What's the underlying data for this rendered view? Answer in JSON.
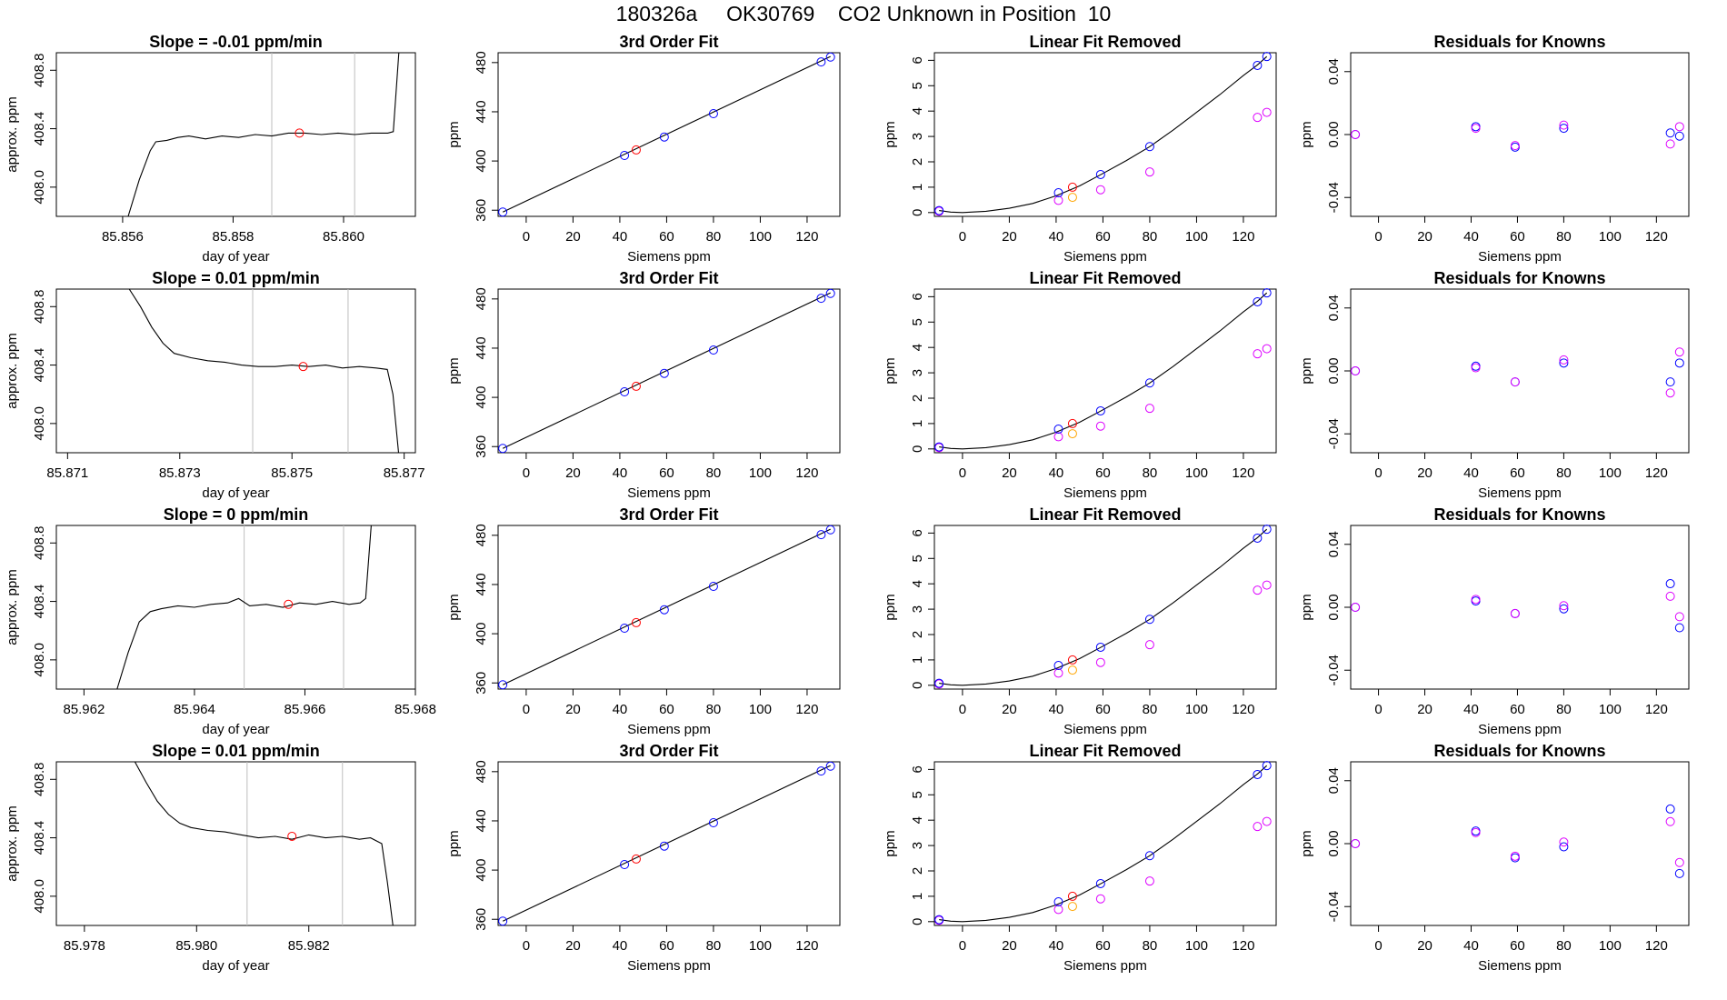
{
  "page": {
    "title": "180326a     OK30769    CO2 Unknown in Position  10"
  },
  "rows": [
    {
      "timeseries": {
        "title": "Slope =  -0.01  ppm/min",
        "xlabel": "day of year",
        "ylabel": "approx. ppm",
        "xlim": [
          85.8548,
          85.8613
        ],
        "ylim": [
          407.8,
          408.92
        ],
        "xticks": [
          "85.856",
          "85.858",
          "85.860"
        ],
        "xtickvals": [
          85.856,
          85.858,
          85.86
        ],
        "yticks": [
          "408.0",
          "408.4",
          "408.8"
        ],
        "ytickvals": [
          408.0,
          408.4,
          408.8
        ],
        "vlines": [
          85.8587,
          85.8602
        ],
        "point": {
          "x": 85.8592,
          "y": 408.37
        },
        "trace": [
          [
            85.8561,
            407.8
          ],
          [
            85.8563,
            408.05
          ],
          [
            85.8565,
            408.25
          ],
          [
            85.8566,
            408.31
          ],
          [
            85.8568,
            408.32
          ],
          [
            85.857,
            408.34
          ],
          [
            85.8572,
            408.35
          ],
          [
            85.8575,
            408.33
          ],
          [
            85.8578,
            408.35
          ],
          [
            85.8581,
            408.34
          ],
          [
            85.8584,
            408.36
          ],
          [
            85.8587,
            408.35
          ],
          [
            85.859,
            408.37
          ],
          [
            85.8593,
            408.37
          ],
          [
            85.8596,
            408.36
          ],
          [
            85.8599,
            408.37
          ],
          [
            85.8602,
            408.36
          ],
          [
            85.8605,
            408.37
          ],
          [
            85.8608,
            408.37
          ],
          [
            85.8609,
            408.38
          ],
          [
            85.861,
            408.92
          ]
        ]
      },
      "residuals": {
        "blue": [
          [
            -10,
            0.0
          ],
          [
            42,
            0.005
          ],
          [
            59,
            -0.008
          ],
          [
            80,
            0.004
          ],
          [
            126,
            0.001
          ],
          [
            130,
            -0.001
          ]
        ],
        "magenta": [
          [
            -10,
            0.0
          ],
          [
            42,
            0.004
          ],
          [
            59,
            -0.007
          ],
          [
            80,
            0.006
          ],
          [
            126,
            -0.006
          ],
          [
            130,
            0.005
          ]
        ]
      }
    },
    {
      "timeseries": {
        "title": "Slope =  0.01  ppm/min",
        "xlabel": "day of year",
        "ylabel": "approx. ppm",
        "xlim": [
          85.8708,
          85.8772
        ],
        "ylim": [
          407.8,
          408.92
        ],
        "xticks": [
          "85.871",
          "85.873",
          "85.875",
          "85.877"
        ],
        "xtickvals": [
          85.871,
          85.873,
          85.875,
          85.877
        ],
        "yticks": [
          "408.0",
          "408.4",
          "408.8"
        ],
        "ytickvals": [
          408.0,
          408.4,
          408.8
        ],
        "vlines": [
          85.8743,
          85.876
        ],
        "point": {
          "x": 85.8752,
          "y": 408.39
        },
        "trace": [
          [
            85.8721,
            408.92
          ],
          [
            85.8723,
            408.8
          ],
          [
            85.8725,
            408.66
          ],
          [
            85.8727,
            408.55
          ],
          [
            85.8729,
            408.48
          ],
          [
            85.8732,
            408.45
          ],
          [
            85.8735,
            408.43
          ],
          [
            85.8738,
            408.42
          ],
          [
            85.8741,
            408.4
          ],
          [
            85.8744,
            408.39
          ],
          [
            85.8747,
            408.39
          ],
          [
            85.875,
            408.4
          ],
          [
            85.8753,
            408.39
          ],
          [
            85.8756,
            408.4
          ],
          [
            85.8759,
            408.38
          ],
          [
            85.8762,
            408.39
          ],
          [
            85.8765,
            408.38
          ],
          [
            85.8767,
            408.37
          ],
          [
            85.8768,
            408.2
          ],
          [
            85.8769,
            407.8
          ]
        ]
      },
      "residuals": {
        "blue": [
          [
            -10,
            0.0
          ],
          [
            42,
            0.003
          ],
          [
            59,
            -0.007
          ],
          [
            80,
            0.005
          ],
          [
            126,
            -0.007
          ],
          [
            130,
            0.005
          ]
        ],
        "magenta": [
          [
            -10,
            0.0
          ],
          [
            42,
            0.002
          ],
          [
            59,
            -0.007
          ],
          [
            80,
            0.007
          ],
          [
            126,
            -0.014
          ],
          [
            130,
            0.012
          ]
        ]
      }
    },
    {
      "timeseries": {
        "title": "Slope =  0  ppm/min",
        "xlabel": "day of year",
        "ylabel": "approx. ppm",
        "xlim": [
          85.9615,
          85.968
        ],
        "ylim": [
          407.8,
          408.92
        ],
        "xticks": [
          "85.962",
          "85.964",
          "85.966",
          "85.968"
        ],
        "xtickvals": [
          85.962,
          85.964,
          85.966,
          85.968
        ],
        "yticks": [
          "408.0",
          "408.4",
          "408.8"
        ],
        "ytickvals": [
          408.0,
          408.4,
          408.8
        ],
        "vlines": [
          85.9649,
          85.9667
        ],
        "point": {
          "x": 85.9657,
          "y": 408.38
        },
        "trace": [
          [
            85.9626,
            407.8
          ],
          [
            85.9628,
            408.05
          ],
          [
            85.963,
            408.26
          ],
          [
            85.9632,
            408.33
          ],
          [
            85.9634,
            408.35
          ],
          [
            85.9637,
            408.37
          ],
          [
            85.964,
            408.36
          ],
          [
            85.9643,
            408.38
          ],
          [
            85.9646,
            408.39
          ],
          [
            85.9648,
            408.42
          ],
          [
            85.965,
            408.37
          ],
          [
            85.9653,
            408.38
          ],
          [
            85.9656,
            408.36
          ],
          [
            85.9659,
            408.39
          ],
          [
            85.9662,
            408.38
          ],
          [
            85.9665,
            408.4
          ],
          [
            85.9668,
            408.38
          ],
          [
            85.967,
            408.39
          ],
          [
            85.9671,
            408.42
          ],
          [
            85.9672,
            408.92
          ]
        ]
      },
      "residuals": {
        "blue": [
          [
            -10,
            0.0
          ],
          [
            42,
            0.004
          ],
          [
            59,
            -0.004
          ],
          [
            80,
            -0.001
          ],
          [
            126,
            0.015
          ],
          [
            130,
            -0.013
          ]
        ],
        "magenta": [
          [
            -10,
            0.0
          ],
          [
            42,
            0.005
          ],
          [
            59,
            -0.004
          ],
          [
            80,
            0.001
          ],
          [
            126,
            0.007
          ],
          [
            130,
            -0.006
          ]
        ]
      }
    },
    {
      "timeseries": {
        "title": "Slope =  0.01  ppm/min",
        "xlabel": "day of year",
        "ylabel": "approx. ppm",
        "xlim": [
          85.9775,
          85.9839
        ],
        "ylim": [
          407.8,
          408.92
        ],
        "xticks": [
          "85.978",
          "85.980",
          "85.982"
        ],
        "xtickvals": [
          85.978,
          85.98,
          85.982
        ],
        "yticks": [
          "408.0",
          "408.4",
          "408.8"
        ],
        "ytickvals": [
          408.0,
          408.4,
          408.8
        ],
        "vlines": [
          85.9809,
          85.9826
        ],
        "point": {
          "x": 85.9817,
          "y": 408.41
        },
        "trace": [
          [
            85.9789,
            408.92
          ],
          [
            85.9791,
            408.78
          ],
          [
            85.9793,
            408.65
          ],
          [
            85.9795,
            408.56
          ],
          [
            85.9797,
            408.5
          ],
          [
            85.9799,
            408.47
          ],
          [
            85.9802,
            408.45
          ],
          [
            85.9805,
            408.44
          ],
          [
            85.9808,
            408.42
          ],
          [
            85.9811,
            408.4
          ],
          [
            85.9814,
            408.41
          ],
          [
            85.9817,
            408.39
          ],
          [
            85.982,
            408.42
          ],
          [
            85.9823,
            408.4
          ],
          [
            85.9826,
            408.41
          ],
          [
            85.9829,
            408.39
          ],
          [
            85.9831,
            408.4
          ],
          [
            85.9833,
            408.36
          ],
          [
            85.9834,
            408.1
          ],
          [
            85.9835,
            407.8
          ]
        ]
      },
      "residuals": {
        "blue": [
          [
            -10,
            0.0
          ],
          [
            42,
            0.008
          ],
          [
            59,
            -0.009
          ],
          [
            80,
            -0.002
          ],
          [
            126,
            0.022
          ],
          [
            130,
            -0.019
          ]
        ],
        "magenta": [
          [
            -10,
            0.0
          ],
          [
            42,
            0.007
          ],
          [
            59,
            -0.008
          ],
          [
            80,
            0.001
          ],
          [
            126,
            0.014
          ],
          [
            130,
            -0.012
          ]
        ]
      }
    }
  ],
  "fit": {
    "title": "3rd Order Fit",
    "xlabel": "Siemens ppm",
    "ylabel": "ppm",
    "xlim": [
      -12,
      134
    ],
    "ylim": [
      355,
      488
    ],
    "xticks": [
      "0",
      "20",
      "40",
      "60",
      "80",
      "100",
      "120"
    ],
    "xtickvals": [
      0,
      20,
      40,
      60,
      80,
      100,
      120
    ],
    "yticks": [
      "360",
      "400",
      "440",
      "480"
    ],
    "ytickvals": [
      360,
      400,
      440,
      480
    ],
    "line": [
      [
        -10,
        358.5
      ],
      [
        130,
        485
      ]
    ],
    "known": [
      [
        -10,
        358.5
      ],
      [
        42,
        404.5
      ],
      [
        59,
        419.5
      ],
      [
        80,
        438.5
      ],
      [
        126,
        480.5
      ],
      [
        130,
        484.5
      ]
    ],
    "unknown": [
      [
        47,
        409
      ]
    ]
  },
  "linear": {
    "title": "Linear Fit Removed",
    "xlabel": "Siemens ppm",
    "ylabel": "ppm",
    "xlim": [
      -12,
      134
    ],
    "ylim": [
      -0.15,
      6.3
    ],
    "xticks": [
      "0",
      "20",
      "40",
      "60",
      "80",
      "100",
      "120"
    ],
    "xtickvals": [
      0,
      20,
      40,
      60,
      80,
      100,
      120
    ],
    "yticks": [
      "0",
      "1",
      "2",
      "3",
      "4",
      "5",
      "6"
    ],
    "ytickvals": [
      0,
      1,
      2,
      3,
      4,
      5,
      6
    ],
    "curve": [
      [
        -10,
        0.08
      ],
      [
        -5,
        0.02
      ],
      [
        0,
        0.0
      ],
      [
        10,
        0.05
      ],
      [
        20,
        0.17
      ],
      [
        30,
        0.36
      ],
      [
        40,
        0.66
      ],
      [
        50,
        1.05
      ],
      [
        60,
        1.54
      ],
      [
        70,
        2.05
      ],
      [
        80,
        2.6
      ],
      [
        90,
        3.25
      ],
      [
        100,
        3.95
      ],
      [
        110,
        4.65
      ],
      [
        120,
        5.4
      ],
      [
        126,
        5.82
      ],
      [
        130,
        6.15
      ]
    ],
    "blue": [
      [
        -10,
        0.08
      ],
      [
        41,
        0.78
      ],
      [
        59,
        1.5
      ],
      [
        80,
        2.6
      ],
      [
        126,
        5.8
      ],
      [
        130,
        6.15
      ]
    ],
    "magenta": [
      [
        -10,
        0.05
      ],
      [
        41,
        0.48
      ],
      [
        59,
        0.9
      ],
      [
        80,
        1.6
      ],
      [
        126,
        3.75
      ],
      [
        130,
        3.95
      ]
    ],
    "red": [
      [
        47,
        1.0
      ]
    ],
    "orange": [
      [
        47,
        0.6
      ]
    ]
  },
  "resid": {
    "title": "Residuals for Knowns",
    "xlabel": "Siemens ppm",
    "ylabel": "ppm",
    "xlim": [
      -12,
      134
    ],
    "ylim": [
      -0.052,
      0.052
    ],
    "xticks": [
      "0",
      "20",
      "40",
      "60",
      "80",
      "100",
      "120"
    ],
    "xtickvals": [
      0,
      20,
      40,
      60,
      80,
      100,
      120
    ],
    "yticks": [
      "-0.04",
      "0.00",
      "0.04"
    ],
    "ytickvals": [
      -0.04,
      0.0,
      0.04
    ]
  },
  "colors": {
    "axis": "#000000",
    "trace": "#000000",
    "vline": "#bebebe",
    "blue": "#0000ff",
    "red": "#ff0000",
    "magenta": "#dd00ff",
    "orange": "#ffa500"
  },
  "chart_data": [
    {
      "type": "line",
      "title": "Slope =  -0.01  ppm/min",
      "xlabel": "day of year",
      "ylabel": "approx. ppm",
      "xlim": [
        85.8548,
        85.8613
      ],
      "ylim": [
        407.8,
        408.92
      ]
    },
    {
      "type": "scatter",
      "title": "3rd Order Fit",
      "xlabel": "Siemens ppm",
      "ylabel": "ppm",
      "x": [
        -10,
        42,
        59,
        80,
        126,
        130
      ],
      "y": [
        358.5,
        404.5,
        419.5,
        438.5,
        480.5,
        484.5
      ]
    },
    {
      "type": "scatter",
      "title": "Linear Fit Removed",
      "xlabel": "Siemens ppm",
      "ylabel": "ppm",
      "x": [
        -10,
        41,
        59,
        80,
        126,
        130
      ],
      "y": [
        0.08,
        0.78,
        1.5,
        2.6,
        5.8,
        6.15
      ]
    },
    {
      "type": "scatter",
      "title": "Residuals for Knowns",
      "xlabel": "Siemens ppm",
      "ylabel": "ppm",
      "ylim": [
        -0.052,
        0.052
      ]
    }
  ]
}
